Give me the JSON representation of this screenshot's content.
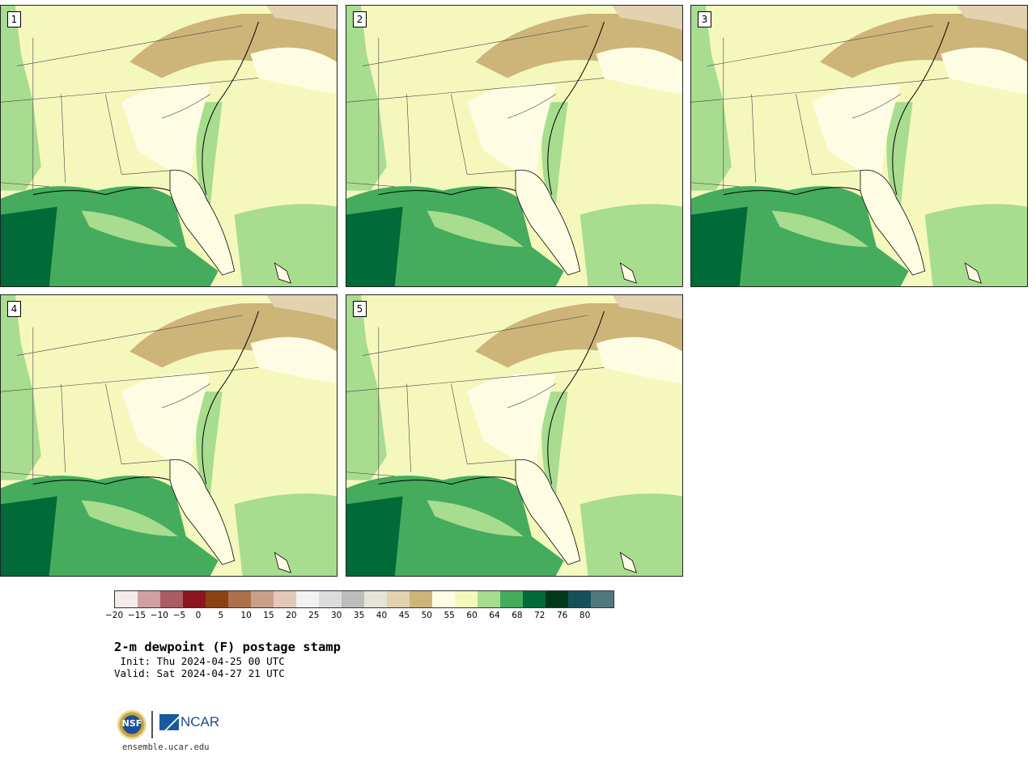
{
  "panels": [
    {
      "label": "1"
    },
    {
      "label": "2"
    },
    {
      "label": "3"
    },
    {
      "label": "4"
    },
    {
      "label": "5"
    }
  ],
  "colorbar": {
    "colors": [
      "#f4eceb",
      "#d2a0a3",
      "#ab5b61",
      "#8a1620",
      "#8a4214",
      "#ac704d",
      "#c8a08a",
      "#e4c8b8",
      "#f2f2f2",
      "#dcdcdc",
      "#bdbdbd",
      "#e4e4d8",
      "#e2d2b0",
      "#cdb479",
      "#fefde4",
      "#f5f8bd",
      "#a8dc8f",
      "#44ac5c",
      "#006a38",
      "#00391c",
      "#18505a",
      "#50797f"
    ],
    "tick_labels": [
      "−20",
      "−15",
      "−10",
      "−5",
      "0",
      "5",
      "10",
      "15",
      "20",
      "25",
      "30",
      "35",
      "40",
      "45",
      "50",
      "55",
      "60",
      "64",
      "68",
      "72",
      "76",
      "80"
    ]
  },
  "title": "2-m dewpoint (F) postage stamp",
  "init": " Init: Thu 2024-04-25 00 UTC",
  "valid": "Valid: Sat 2024-04-27 21 UTC",
  "branding": {
    "nsf_text": "NSF",
    "ncar_text": "NCAR",
    "url": "ensemble.ucar.edu"
  }
}
